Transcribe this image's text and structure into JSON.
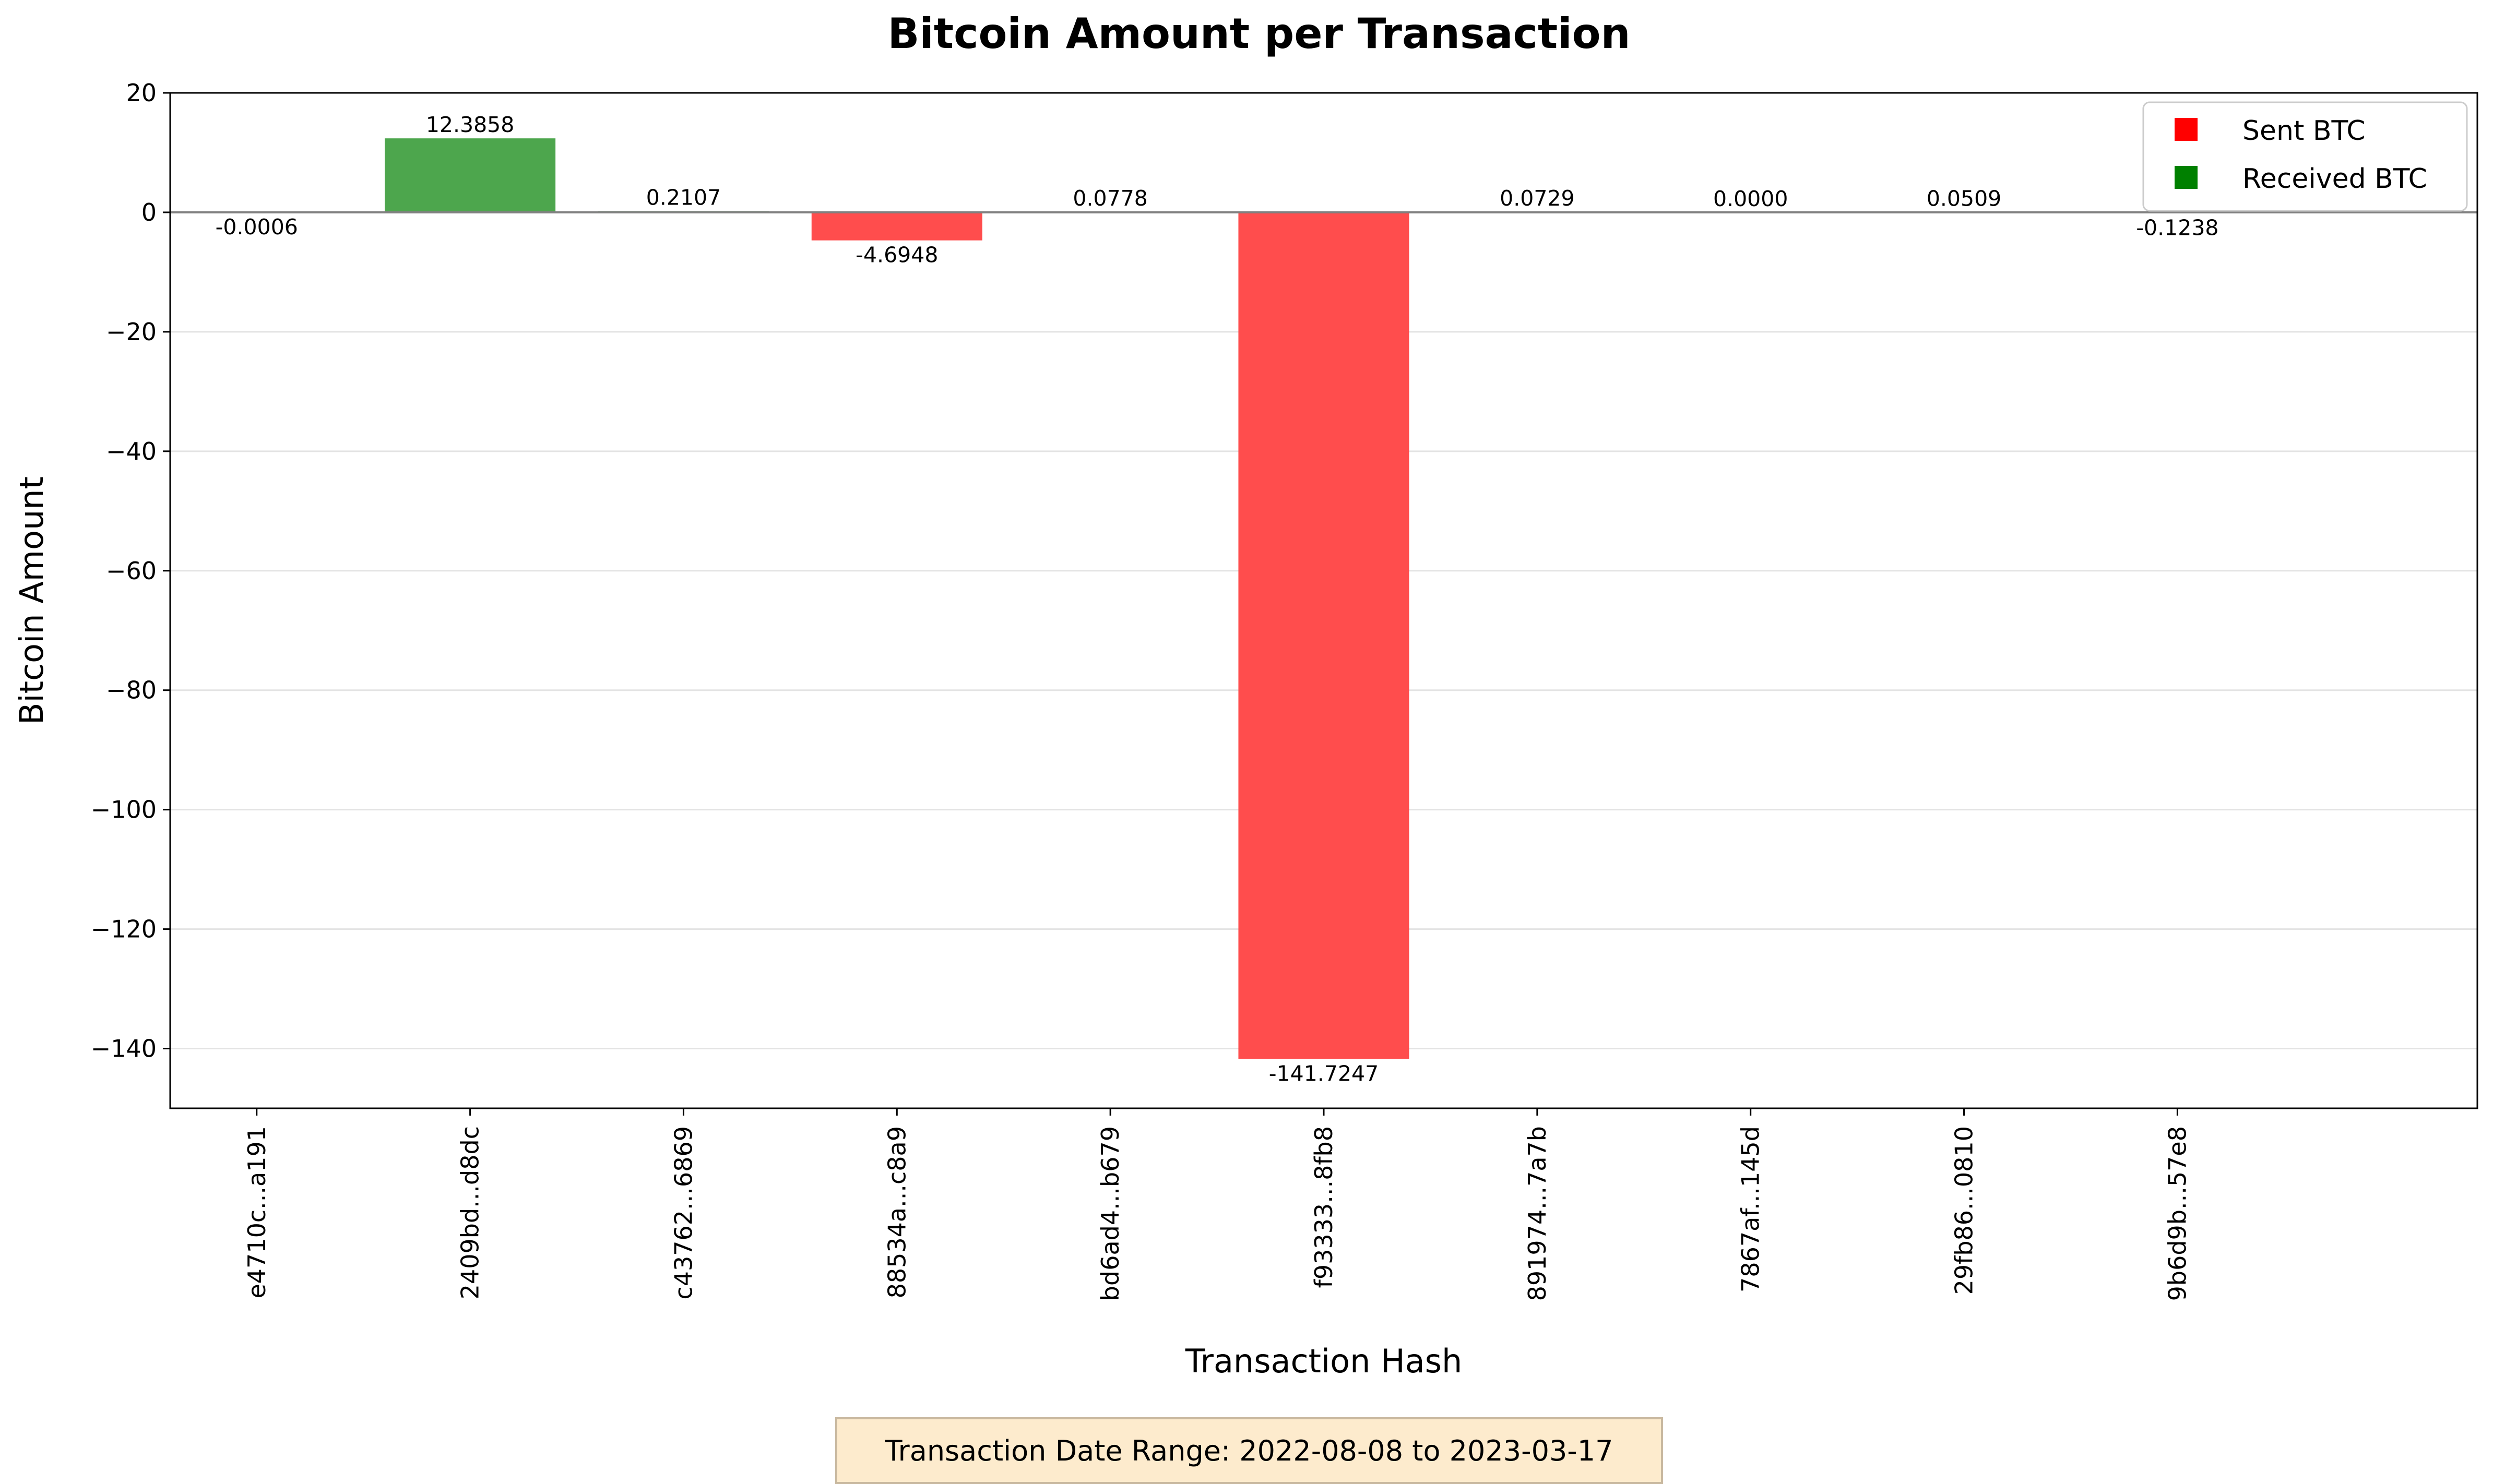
{
  "chart_data": {
    "type": "bar",
    "title": "Bitcoin Amount per Transaction",
    "xlabel": "Transaction Hash",
    "ylabel": "Bitcoin Amount",
    "ylim": [
      -150,
      20
    ],
    "yticks": [
      20,
      0,
      -20,
      -40,
      -60,
      -80,
      -100,
      -120,
      -140
    ],
    "grid": "horizontal",
    "legend_position": "top-right",
    "categories": [
      "e4710c...a191",
      "2409bd...d8dc",
      "c43762...6869",
      "88534a...c8a9",
      "bd6ad4...b679",
      "f93333...8fb8",
      "891974...7a7b",
      "7867af...145d",
      "29fb86...0810",
      "9b6d9b...57e8"
    ],
    "values": [
      -0.0006,
      12.3858,
      0.2107,
      -4.6948,
      0.0778,
      -141.7247,
      0.0729,
      0.0,
      0.0509,
      -0.1238
    ],
    "value_labels": [
      "-0.0006",
      "12.3858",
      "0.2107",
      "-4.6948",
      "0.0778",
      "-141.7247",
      "0.0729",
      "0.0000",
      "0.0509",
      "-0.1238"
    ],
    "series": [
      {
        "name": "Sent BTC",
        "color": "#ff0000",
        "bar_color": "#ff4d4d"
      },
      {
        "name": "Received BTC",
        "color": "#008000",
        "bar_color": "#4da64d"
      }
    ]
  },
  "footer": {
    "note": "Transaction Date Range: 2022-08-08 to 2023-03-17"
  }
}
